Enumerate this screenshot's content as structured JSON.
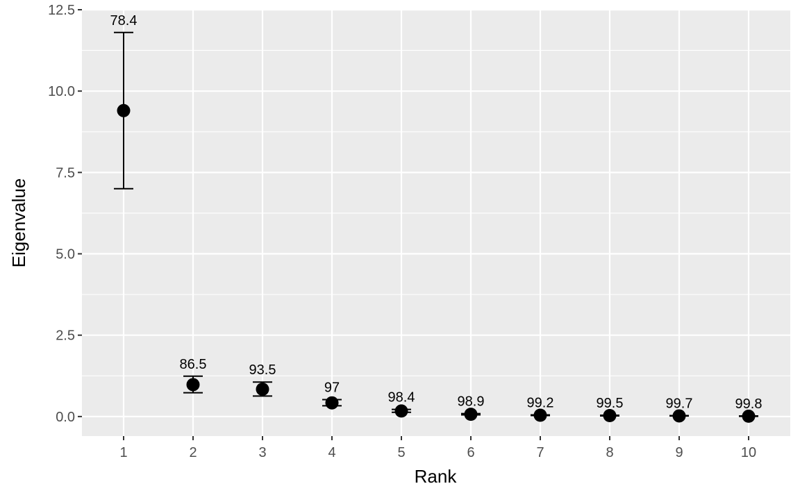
{
  "chart_data": {
    "type": "scatter",
    "title": "",
    "xlabel": "Rank",
    "ylabel": "Eigenvalue",
    "xlim": [
      0.4,
      10.6
    ],
    "ylim": [
      -0.6,
      12.5
    ],
    "x_ticks": [
      1,
      2,
      3,
      4,
      5,
      6,
      7,
      8,
      9,
      10
    ],
    "y_ticks": [
      0.0,
      2.5,
      5.0,
      7.5,
      10.0,
      12.5
    ],
    "y_tick_labels": [
      "0.0",
      "2.5",
      "5.0",
      "7.5",
      "10.0",
      "12.5"
    ],
    "grid": true,
    "colors": {
      "panel": "#ebebeb",
      "grid": "#ffffff",
      "points": "#000000",
      "ticks": "#4d4d4d"
    },
    "points": [
      {
        "x": 1,
        "y": 9.4,
        "ymin": 7.0,
        "ymax": 11.8,
        "label": "78.4"
      },
      {
        "x": 2,
        "y": 0.98,
        "ymin": 0.73,
        "ymax": 1.24,
        "label": "86.5"
      },
      {
        "x": 3,
        "y": 0.84,
        "ymin": 0.63,
        "ymax": 1.06,
        "label": "93.5"
      },
      {
        "x": 4,
        "y": 0.42,
        "ymin": 0.33,
        "ymax": 0.52,
        "label": "97"
      },
      {
        "x": 5,
        "y": 0.17,
        "ymin": 0.13,
        "ymax": 0.22,
        "label": "98.4"
      },
      {
        "x": 6,
        "y": 0.07,
        "ymin": 0.05,
        "ymax": 0.09,
        "label": "98.9"
      },
      {
        "x": 7,
        "y": 0.04,
        "ymin": 0.03,
        "ymax": 0.05,
        "label": "99.2"
      },
      {
        "x": 8,
        "y": 0.03,
        "ymin": 0.02,
        "ymax": 0.04,
        "label": "99.5"
      },
      {
        "x": 9,
        "y": 0.02,
        "ymin": 0.015,
        "ymax": 0.03,
        "label": "99.7"
      },
      {
        "x": 10,
        "y": 0.01,
        "ymin": 0.005,
        "ymax": 0.02,
        "label": "99.8"
      }
    ]
  }
}
